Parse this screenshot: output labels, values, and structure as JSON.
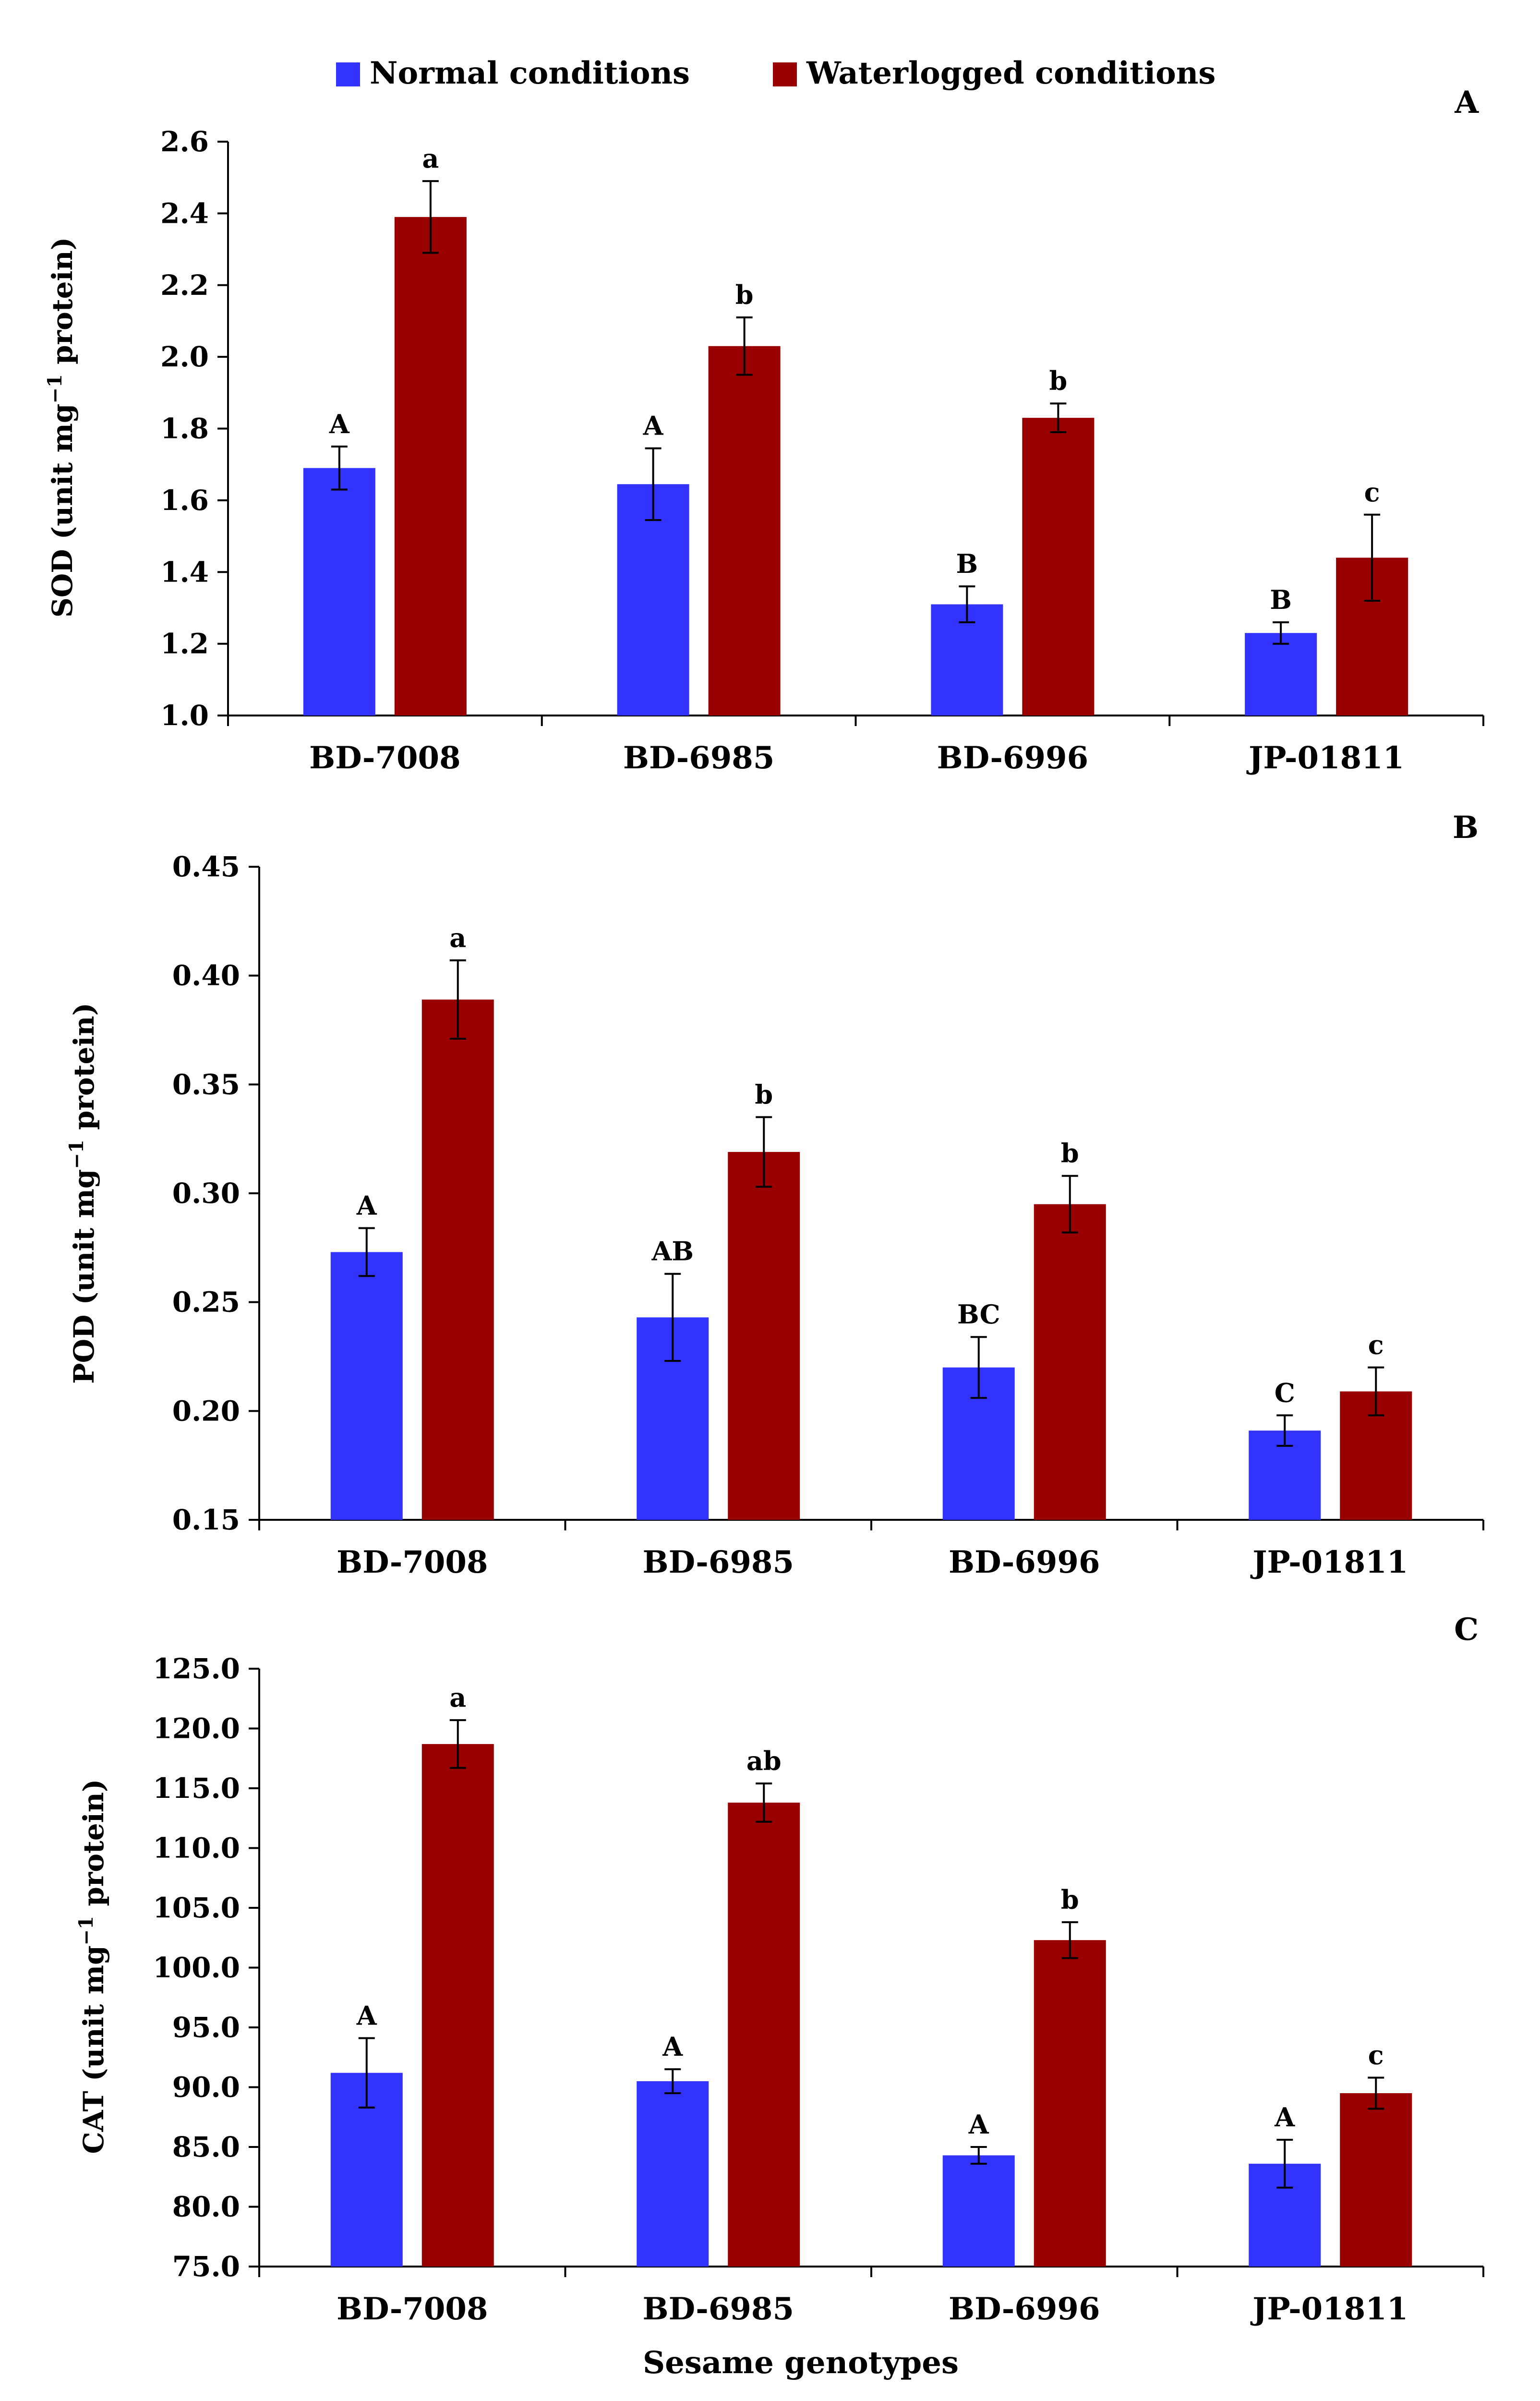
{
  "legend": {
    "normal_label": "Normal conditions",
    "water_label": "Waterlogged conditions",
    "normal_color": "#3333FF",
    "water_color": "#990000"
  },
  "xlabel": "Sesame genotypes",
  "chart_data": [
    {
      "type": "bar",
      "panel": "A",
      "ylabel": {
        "prefix": "SOD (unit mg",
        "sup": "−1",
        "suffix": " protein)"
      },
      "ylim": [
        1.0,
        2.6
      ],
      "yticks": [
        "1.0",
        "1.2",
        "1.4",
        "1.6",
        "1.8",
        "2.0",
        "2.2",
        "2.4",
        "2.6"
      ],
      "categories": [
        "BD-7008",
        "BD-6985",
        "BD-6996",
        "JP-01811"
      ],
      "series": [
        {
          "name": "Normal conditions",
          "values": [
            1.69,
            1.645,
            1.31,
            1.23
          ],
          "errors": [
            0.06,
            0.1,
            0.05,
            0.03
          ],
          "labels": [
            "A",
            "A",
            "B",
            "B"
          ]
        },
        {
          "name": "Waterlogged conditions",
          "values": [
            2.39,
            2.03,
            1.83,
            1.44
          ],
          "errors": [
            0.1,
            0.08,
            0.04,
            0.12
          ],
          "labels": [
            "a",
            "b",
            "b",
            "c"
          ]
        }
      ]
    },
    {
      "type": "bar",
      "panel": "B",
      "ylabel": {
        "prefix": "POD (unit mg",
        "sup": "−1",
        "suffix": " protein)"
      },
      "ylim": [
        0.15,
        0.45
      ],
      "yticks": [
        "0.15",
        "0.20",
        "0.25",
        "0.30",
        "0.35",
        "0.40",
        "0.45"
      ],
      "categories": [
        "BD-7008",
        "BD-6985",
        "BD-6996",
        "JP-01811"
      ],
      "series": [
        {
          "name": "Normal conditions",
          "values": [
            0.273,
            0.243,
            0.22,
            0.191
          ],
          "errors": [
            0.011,
            0.02,
            0.014,
            0.007
          ],
          "labels": [
            "A",
            "AB",
            "BC",
            "C"
          ]
        },
        {
          "name": "Waterlogged conditions",
          "values": [
            0.389,
            0.319,
            0.295,
            0.209
          ],
          "errors": [
            0.018,
            0.016,
            0.013,
            0.011
          ],
          "labels": [
            "a",
            "b",
            "b",
            "c"
          ]
        }
      ]
    },
    {
      "type": "bar",
      "panel": "C",
      "ylabel": {
        "prefix": "CAT (unit mg",
        "sup": "−1",
        "suffix": " protein)"
      },
      "ylim": [
        75.0,
        125.0
      ],
      "yticks": [
        "75.0",
        "80.0",
        "85.0",
        "90.0",
        "95.0",
        "100.0",
        "105.0",
        "110.0",
        "115.0",
        "120.0",
        "125.0"
      ],
      "categories": [
        "BD-7008",
        "BD-6985",
        "BD-6996",
        "JP-01811"
      ],
      "series": [
        {
          "name": "Normal conditions",
          "values": [
            91.2,
            90.5,
            84.3,
            83.6
          ],
          "errors": [
            2.9,
            1.0,
            0.7,
            2.0
          ],
          "labels": [
            "A",
            "A",
            "A",
            "A"
          ]
        },
        {
          "name": "Waterlogged conditions",
          "values": [
            118.7,
            113.8,
            102.3,
            89.5
          ],
          "errors": [
            2.0,
            1.6,
            1.5,
            1.3
          ],
          "labels": [
            "a",
            "ab",
            "b",
            "c"
          ]
        }
      ]
    }
  ]
}
